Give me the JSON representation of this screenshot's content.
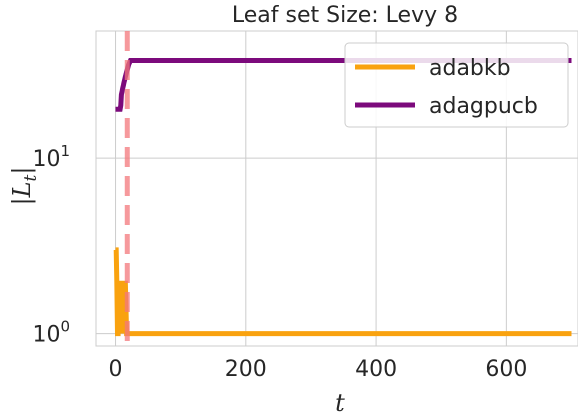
{
  "chart_data": {
    "type": "line",
    "title": "Leaf set Size: Levy 8",
    "xlabel": "t",
    "ylabel": "|L_t|",
    "xlim": [
      -30,
      710
    ],
    "ylim": [
      0.85,
      53
    ],
    "yscale": "log",
    "xticks": [
      0,
      200,
      400,
      600
    ],
    "yticks": [
      {
        "value": 1,
        "base": "10",
        "exp": "0"
      },
      {
        "value": 10,
        "base": "10",
        "exp": "1"
      }
    ],
    "grid": true,
    "legend_position": "top-right",
    "vline": {
      "x": 18,
      "color": "#f4787b"
    },
    "series": [
      {
        "name": "adabkb",
        "color": "#f9a20f",
        "points": [
          [
            0,
            3
          ],
          [
            1,
            3
          ],
          [
            2,
            2
          ],
          [
            3,
            1
          ],
          [
            4,
            1
          ],
          [
            5,
            2
          ],
          [
            6,
            1
          ],
          [
            8,
            2
          ],
          [
            9,
            1
          ],
          [
            11,
            2
          ],
          [
            13,
            1
          ],
          [
            15,
            2
          ],
          [
            17,
            1
          ],
          [
            18,
            1
          ],
          [
            700,
            1
          ]
        ]
      },
      {
        "name": "adagpucb",
        "color": "#7c0a7c",
        "points": [
          [
            0,
            19
          ],
          [
            7,
            19
          ],
          [
            8,
            20
          ],
          [
            9,
            23
          ],
          [
            10,
            24
          ],
          [
            11,
            25
          ],
          [
            12,
            26
          ],
          [
            13,
            27
          ],
          [
            14,
            28
          ],
          [
            15,
            29
          ],
          [
            16,
            30
          ],
          [
            17,
            31
          ],
          [
            18,
            32
          ],
          [
            20,
            34
          ],
          [
            23,
            36
          ],
          [
            700,
            36
          ]
        ]
      }
    ]
  }
}
